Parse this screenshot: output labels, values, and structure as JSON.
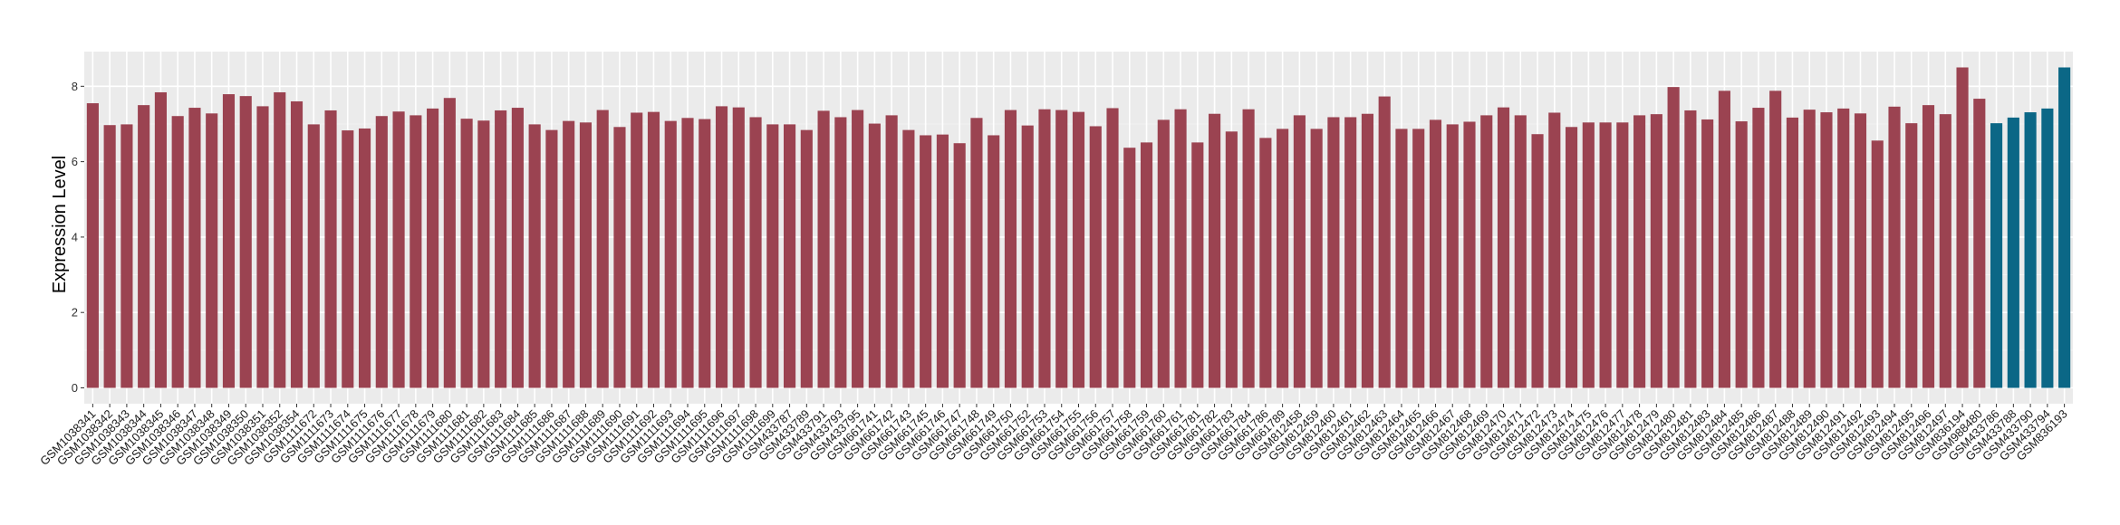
{
  "chart_data": {
    "type": "bar",
    "title": "",
    "xlabel": "",
    "ylabel": "Expression Level",
    "ylim": [
      -0.42,
      8.92
    ],
    "yticks": [
      0,
      2,
      4,
      6,
      8
    ],
    "grid": true,
    "background": "#EBEBEB",
    "colors": {
      "group1": "#9B4351",
      "group2": "#0B6786"
    },
    "categories": [
      "GSM1038341",
      "GSM1038342",
      "GSM1038343",
      "GSM1038344",
      "GSM1038345",
      "GSM1038346",
      "GSM1038347",
      "GSM1038348",
      "GSM1038349",
      "GSM1038350",
      "GSM1038351",
      "GSM1038352",
      "GSM1038354",
      "GSM1111672",
      "GSM1111673",
      "GSM1111674",
      "GSM1111675",
      "GSM1111676",
      "GSM1111677",
      "GSM1111678",
      "GSM1111679",
      "GSM1111680",
      "GSM1111681",
      "GSM1111682",
      "GSM1111683",
      "GSM1111684",
      "GSM1111685",
      "GSM1111686",
      "GSM1111687",
      "GSM1111688",
      "GSM1111689",
      "GSM1111690",
      "GSM1111691",
      "GSM1111692",
      "GSM1111693",
      "GSM1111694",
      "GSM1111695",
      "GSM1111696",
      "GSM1111697",
      "GSM1111698",
      "GSM1111699",
      "GSM433787",
      "GSM433789",
      "GSM433791",
      "GSM433793",
      "GSM433795",
      "GSM661741",
      "GSM661742",
      "GSM661743",
      "GSM661745",
      "GSM661746",
      "GSM661747",
      "GSM661748",
      "GSM661749",
      "GSM661750",
      "GSM661752",
      "GSM661753",
      "GSM661754",
      "GSM661755",
      "GSM661756",
      "GSM661757",
      "GSM661758",
      "GSM661759",
      "GSM661760",
      "GSM661761",
      "GSM661781",
      "GSM661782",
      "GSM661783",
      "GSM661784",
      "GSM661786",
      "GSM661789",
      "GSM812458",
      "GSM812459",
      "GSM812460",
      "GSM812461",
      "GSM812462",
      "GSM812463",
      "GSM812464",
      "GSM812465",
      "GSM812466",
      "GSM812467",
      "GSM812468",
      "GSM812469",
      "GSM812470",
      "GSM812471",
      "GSM812472",
      "GSM812473",
      "GSM812474",
      "GSM812475",
      "GSM812476",
      "GSM812477",
      "GSM812478",
      "GSM812479",
      "GSM812480",
      "GSM812481",
      "GSM812483",
      "GSM812484",
      "GSM812485",
      "GSM812486",
      "GSM812487",
      "GSM812488",
      "GSM812489",
      "GSM812490",
      "GSM812491",
      "GSM812492",
      "GSM812493",
      "GSM812494",
      "GSM812495",
      "GSM812496",
      "GSM812497",
      "GSM836194",
      "GSM988480",
      "GSM433786",
      "GSM433788",
      "GSM433790",
      "GSM433794",
      "GSM836193"
    ],
    "values": [
      7.55,
      6.97,
      6.99,
      7.5,
      7.84,
      7.21,
      7.43,
      7.28,
      7.79,
      7.74,
      7.47,
      7.84,
      7.6,
      6.99,
      7.36,
      6.83,
      6.88,
      7.21,
      7.33,
      7.23,
      7.41,
      7.69,
      7.14,
      7.09,
      7.36,
      7.43,
      6.99,
      6.84,
      7.08,
      7.04,
      7.37,
      6.92,
      7.3,
      7.32,
      7.08,
      7.16,
      7.13,
      7.47,
      7.44,
      7.18,
      6.99,
      6.99,
      6.84,
      7.35,
      7.18,
      7.37,
      7.01,
      7.23,
      6.84,
      6.7,
      6.72,
      6.49,
      7.16,
      6.7,
      7.37,
      6.96,
      7.39,
      7.37,
      7.32,
      6.94,
      7.42,
      6.37,
      6.51,
      7.11,
      7.39,
      6.51,
      7.27,
      6.8,
      7.39,
      6.63,
      6.87,
      7.23,
      6.87,
      7.18,
      7.18,
      7.27,
      7.73,
      6.87,
      6.87,
      7.11,
      6.99,
      7.06,
      7.23,
      7.44,
      7.23,
      6.73,
      7.3,
      6.92,
      7.04,
      7.04,
      7.04,
      7.23,
      7.26,
      7.98,
      7.36,
      7.12,
      7.88,
      7.07,
      7.43,
      7.88,
      7.17,
      7.38,
      7.31,
      7.41,
      7.28,
      6.56,
      7.46,
      7.02,
      7.5,
      7.26,
      8.5,
      7.67,
      7.02,
      7.17,
      7.31,
      7.41,
      8.5
    ],
    "groups": [
      "group1",
      "group1",
      "group1",
      "group1",
      "group1",
      "group1",
      "group1",
      "group1",
      "group1",
      "group1",
      "group1",
      "group1",
      "group1",
      "group1",
      "group1",
      "group1",
      "group1",
      "group1",
      "group1",
      "group1",
      "group1",
      "group1",
      "group1",
      "group1",
      "group1",
      "group1",
      "group1",
      "group1",
      "group1",
      "group1",
      "group1",
      "group1",
      "group1",
      "group1",
      "group1",
      "group1",
      "group1",
      "group1",
      "group1",
      "group1",
      "group1",
      "group1",
      "group1",
      "group1",
      "group1",
      "group1",
      "group1",
      "group1",
      "group1",
      "group1",
      "group1",
      "group1",
      "group1",
      "group1",
      "group1",
      "group1",
      "group1",
      "group1",
      "group1",
      "group1",
      "group1",
      "group1",
      "group1",
      "group1",
      "group1",
      "group1",
      "group1",
      "group1",
      "group1",
      "group1",
      "group1",
      "group1",
      "group1",
      "group1",
      "group1",
      "group1",
      "group1",
      "group1",
      "group1",
      "group1",
      "group1",
      "group1",
      "group1",
      "group1",
      "group1",
      "group1",
      "group1",
      "group1",
      "group1",
      "group1",
      "group1",
      "group1",
      "group1",
      "group1",
      "group1",
      "group1",
      "group1",
      "group1",
      "group1",
      "group1",
      "group1",
      "group1",
      "group1",
      "group1",
      "group1",
      "group1",
      "group1",
      "group1",
      "group1",
      "group1",
      "group1",
      "group1",
      "group2",
      "group2",
      "group2",
      "group2",
      "group2"
    ]
  }
}
